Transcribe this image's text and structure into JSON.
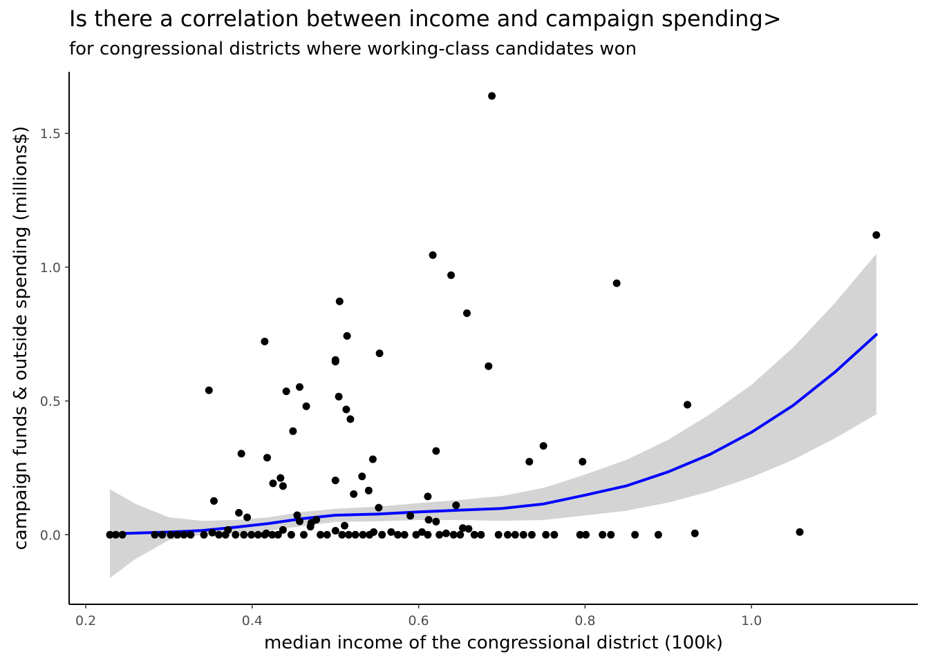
{
  "chart_data": {
    "type": "scatter",
    "title": "Is there a correlation between income and campaign spending>",
    "subtitle": "for congressional districts where working-class candidates won",
    "xlabel": "median income of the congressional district (100k)",
    "ylabel": "campaign funds & outside spending (millions$)",
    "xlim": [
      0.18,
      1.2
    ],
    "ylim": [
      -0.26,
      1.73
    ],
    "x_ticks": [
      0.2,
      0.4,
      0.6,
      0.8,
      1.0
    ],
    "x_tick_labels": [
      "0.2",
      "0.4",
      "0.6",
      "0.8",
      "1.0"
    ],
    "y_ticks": [
      0.0,
      0.5,
      1.0,
      1.5
    ],
    "y_tick_labels": [
      "0.0",
      "0.5",
      "1.0",
      "1.5"
    ],
    "grid": false,
    "colors": {
      "points": "#000000",
      "smooth_line": "#0000ff",
      "ribbon": "#d4d4d4",
      "axis": "#000000"
    },
    "points": [
      {
        "x": 0.688,
        "y": 1.64
      },
      {
        "x": 1.15,
        "y": 1.12
      },
      {
        "x": 0.617,
        "y": 1.045
      },
      {
        "x": 0.639,
        "y": 0.97
      },
      {
        "x": 0.838,
        "y": 0.94
      },
      {
        "x": 0.505,
        "y": 0.872
      },
      {
        "x": 0.658,
        "y": 0.828
      },
      {
        "x": 0.514,
        "y": 0.743
      },
      {
        "x": 0.415,
        "y": 0.722
      },
      {
        "x": 0.553,
        "y": 0.678
      },
      {
        "x": 0.5,
        "y": 0.653
      },
      {
        "x": 0.5,
        "y": 0.647
      },
      {
        "x": 0.684,
        "y": 0.63
      },
      {
        "x": 0.457,
        "y": 0.552
      },
      {
        "x": 0.348,
        "y": 0.54
      },
      {
        "x": 0.441,
        "y": 0.536
      },
      {
        "x": 0.504,
        "y": 0.516
      },
      {
        "x": 0.923,
        "y": 0.486
      },
      {
        "x": 0.465,
        "y": 0.48
      },
      {
        "x": 0.513,
        "y": 0.468
      },
      {
        "x": 0.518,
        "y": 0.432
      },
      {
        "x": 0.449,
        "y": 0.387
      },
      {
        "x": 0.75,
        "y": 0.332
      },
      {
        "x": 0.621,
        "y": 0.313
      },
      {
        "x": 0.387,
        "y": 0.303
      },
      {
        "x": 0.418,
        "y": 0.288
      },
      {
        "x": 0.545,
        "y": 0.282
      },
      {
        "x": 0.733,
        "y": 0.273
      },
      {
        "x": 0.797,
        "y": 0.273
      },
      {
        "x": 0.532,
        "y": 0.218
      },
      {
        "x": 0.434,
        "y": 0.212
      },
      {
        "x": 0.5,
        "y": 0.203
      },
      {
        "x": 0.425,
        "y": 0.192
      },
      {
        "x": 0.437,
        "y": 0.182
      },
      {
        "x": 0.54,
        "y": 0.165
      },
      {
        "x": 0.522,
        "y": 0.152
      },
      {
        "x": 0.611,
        "y": 0.143
      },
      {
        "x": 0.354,
        "y": 0.126
      },
      {
        "x": 0.645,
        "y": 0.11
      },
      {
        "x": 0.552,
        "y": 0.101
      },
      {
        "x": 0.384,
        "y": 0.082
      },
      {
        "x": 0.454,
        "y": 0.073
      },
      {
        "x": 0.59,
        "y": 0.071
      },
      {
        "x": 0.394,
        "y": 0.065
      },
      {
        "x": 0.612,
        "y": 0.056
      },
      {
        "x": 0.477,
        "y": 0.056
      },
      {
        "x": 0.457,
        "y": 0.05
      },
      {
        "x": 0.621,
        "y": 0.049
      },
      {
        "x": 0.471,
        "y": 0.044
      },
      {
        "x": 0.511,
        "y": 0.034
      },
      {
        "x": 0.47,
        "y": 0.03
      },
      {
        "x": 0.653,
        "y": 0.025
      },
      {
        "x": 0.66,
        "y": 0.022
      },
      {
        "x": 0.371,
        "y": 0.018
      },
      {
        "x": 0.437,
        "y": 0.018
      },
      {
        "x": 0.5,
        "y": 0.015
      },
      {
        "x": 1.058,
        "y": 0.01
      },
      {
        "x": 0.546,
        "y": 0.01
      },
      {
        "x": 0.567,
        "y": 0.01
      },
      {
        "x": 0.604,
        "y": 0.01
      },
      {
        "x": 0.352,
        "y": 0.008
      },
      {
        "x": 0.932,
        "y": 0.005
      },
      {
        "x": 0.633,
        "y": 0.005
      },
      {
        "x": 0.417,
        "y": 0.005
      },
      {
        "x": 0.229,
        "y": 0.0
      },
      {
        "x": 0.236,
        "y": 0.0
      },
      {
        "x": 0.244,
        "y": 0.0
      },
      {
        "x": 0.283,
        "y": 0.0
      },
      {
        "x": 0.292,
        "y": 0.0
      },
      {
        "x": 0.302,
        "y": 0.0
      },
      {
        "x": 0.31,
        "y": 0.0
      },
      {
        "x": 0.318,
        "y": 0.0
      },
      {
        "x": 0.326,
        "y": 0.0
      },
      {
        "x": 0.342,
        "y": 0.0
      },
      {
        "x": 0.36,
        "y": 0.0
      },
      {
        "x": 0.368,
        "y": 0.0
      },
      {
        "x": 0.38,
        "y": 0.0
      },
      {
        "x": 0.39,
        "y": 0.0
      },
      {
        "x": 0.399,
        "y": 0.0
      },
      {
        "x": 0.407,
        "y": 0.0
      },
      {
        "x": 0.415,
        "y": 0.0
      },
      {
        "x": 0.424,
        "y": 0.0
      },
      {
        "x": 0.431,
        "y": 0.0
      },
      {
        "x": 0.447,
        "y": 0.0
      },
      {
        "x": 0.462,
        "y": 0.0
      },
      {
        "x": 0.482,
        "y": 0.0
      },
      {
        "x": 0.49,
        "y": 0.0
      },
      {
        "x": 0.508,
        "y": 0.0
      },
      {
        "x": 0.516,
        "y": 0.0
      },
      {
        "x": 0.524,
        "y": 0.0
      },
      {
        "x": 0.533,
        "y": 0.0
      },
      {
        "x": 0.541,
        "y": 0.0
      },
      {
        "x": 0.556,
        "y": 0.0
      },
      {
        "x": 0.575,
        "y": 0.0
      },
      {
        "x": 0.583,
        "y": 0.0
      },
      {
        "x": 0.597,
        "y": 0.0
      },
      {
        "x": 0.611,
        "y": 0.0
      },
      {
        "x": 0.625,
        "y": 0.0
      },
      {
        "x": 0.642,
        "y": 0.0
      },
      {
        "x": 0.65,
        "y": 0.0
      },
      {
        "x": 0.667,
        "y": 0.0
      },
      {
        "x": 0.675,
        "y": 0.0
      },
      {
        "x": 0.696,
        "y": 0.0
      },
      {
        "x": 0.707,
        "y": 0.0
      },
      {
        "x": 0.716,
        "y": 0.0
      },
      {
        "x": 0.726,
        "y": 0.0
      },
      {
        "x": 0.736,
        "y": 0.0
      },
      {
        "x": 0.753,
        "y": 0.0
      },
      {
        "x": 0.763,
        "y": 0.0
      },
      {
        "x": 0.794,
        "y": 0.0
      },
      {
        "x": 0.801,
        "y": 0.0
      },
      {
        "x": 0.821,
        "y": 0.0
      },
      {
        "x": 0.831,
        "y": 0.0
      },
      {
        "x": 0.86,
        "y": 0.0
      },
      {
        "x": 0.888,
        "y": 0.0
      }
    ],
    "smooth": [
      {
        "x": 0.229,
        "y": 0.003,
        "lo": -0.162,
        "hi": 0.17
      },
      {
        "x": 0.26,
        "y": 0.006,
        "lo": -0.09,
        "hi": 0.115
      },
      {
        "x": 0.3,
        "y": 0.01,
        "lo": -0.02,
        "hi": 0.065
      },
      {
        "x": 0.34,
        "y": 0.016,
        "lo": 0.0,
        "hi": 0.052
      },
      {
        "x": 0.38,
        "y": 0.028,
        "lo": 0.005,
        "hi": 0.055
      },
      {
        "x": 0.42,
        "y": 0.042,
        "lo": 0.015,
        "hi": 0.065
      },
      {
        "x": 0.46,
        "y": 0.06,
        "lo": 0.032,
        "hi": 0.085
      },
      {
        "x": 0.5,
        "y": 0.073,
        "lo": 0.048,
        "hi": 0.097
      },
      {
        "x": 0.55,
        "y": 0.077,
        "lo": 0.05,
        "hi": 0.105
      },
      {
        "x": 0.6,
        "y": 0.085,
        "lo": 0.055,
        "hi": 0.118
      },
      {
        "x": 0.65,
        "y": 0.092,
        "lo": 0.055,
        "hi": 0.13
      },
      {
        "x": 0.7,
        "y": 0.098,
        "lo": 0.052,
        "hi": 0.145
      },
      {
        "x": 0.75,
        "y": 0.115,
        "lo": 0.055,
        "hi": 0.175
      },
      {
        "x": 0.8,
        "y": 0.148,
        "lo": 0.072,
        "hi": 0.225
      },
      {
        "x": 0.85,
        "y": 0.183,
        "lo": 0.09,
        "hi": 0.28
      },
      {
        "x": 0.9,
        "y": 0.235,
        "lo": 0.12,
        "hi": 0.355
      },
      {
        "x": 0.95,
        "y": 0.3,
        "lo": 0.162,
        "hi": 0.45
      },
      {
        "x": 1.0,
        "y": 0.383,
        "lo": 0.215,
        "hi": 0.56
      },
      {
        "x": 1.05,
        "y": 0.483,
        "lo": 0.28,
        "hi": 0.7
      },
      {
        "x": 1.1,
        "y": 0.607,
        "lo": 0.36,
        "hi": 0.865
      },
      {
        "x": 1.15,
        "y": 0.748,
        "lo": 0.45,
        "hi": 1.05
      }
    ]
  }
}
